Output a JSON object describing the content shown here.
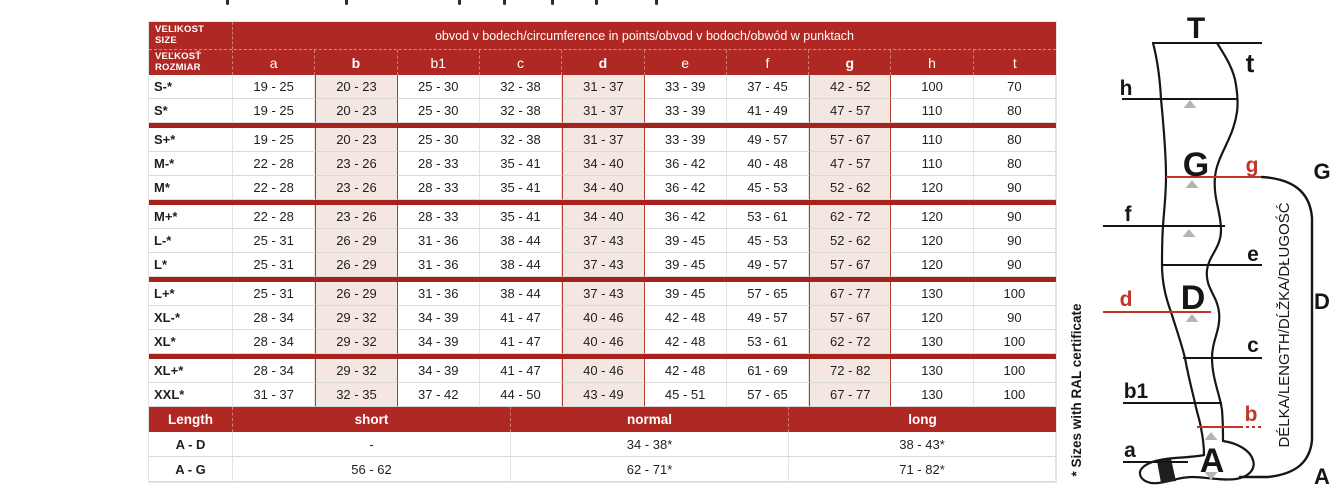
{
  "artifacts": {
    "top_cropped_marks_x": [
      226,
      345,
      458,
      503,
      551,
      595,
      655
    ]
  },
  "table": {
    "size_header_row1": {
      "line1": "VELIKOST",
      "line2": "SIZE"
    },
    "size_header_row2": {
      "line1": "VEĽKOSŤ",
      "line2": "ROZMIAR"
    },
    "circumference_title": "obvod v bodech/circumference in points/obvod v bodoch/obwód w punktach",
    "columns": [
      {
        "label": "a",
        "highlight": false
      },
      {
        "label": "b",
        "highlight": true
      },
      {
        "label": "b1",
        "highlight": false
      },
      {
        "label": "c",
        "highlight": false
      },
      {
        "label": "d",
        "highlight": true
      },
      {
        "label": "e",
        "highlight": false
      },
      {
        "label": "f",
        "highlight": false
      },
      {
        "label": "g",
        "highlight": true
      },
      {
        "label": "h",
        "highlight": false
      },
      {
        "label": "t",
        "highlight": false
      }
    ],
    "rows": [
      {
        "size": "S-*",
        "group_start": false,
        "values": [
          "19 - 25",
          "20 - 23",
          "25 - 30",
          "32 - 38",
          "31 - 37",
          "33 - 39",
          "37 - 45",
          "42 - 52",
          "100",
          "70"
        ]
      },
      {
        "size": "S*",
        "group_start": false,
        "values": [
          "19 - 25",
          "20 - 23",
          "25 - 30",
          "32 - 38",
          "31 - 37",
          "33 - 39",
          "41 - 49",
          "47 - 57",
          "110",
          "80"
        ]
      },
      {
        "size": "S+*",
        "group_start": true,
        "values": [
          "19 - 25",
          "20 - 23",
          "25 - 30",
          "32 - 38",
          "31 - 37",
          "33 - 39",
          "49 - 57",
          "57 - 67",
          "110",
          "80"
        ]
      },
      {
        "size": "M-*",
        "group_start": false,
        "values": [
          "22 - 28",
          "23 - 26",
          "28 - 33",
          "35 - 41",
          "34 - 40",
          "36 - 42",
          "40 - 48",
          "47 - 57",
          "110",
          "80"
        ]
      },
      {
        "size": "M*",
        "group_start": false,
        "values": [
          "22 - 28",
          "23 - 26",
          "28 - 33",
          "35 - 41",
          "34 - 40",
          "36 - 42",
          "45 - 53",
          "52 - 62",
          "120",
          "90"
        ]
      },
      {
        "size": "M+*",
        "group_start": true,
        "values": [
          "22 - 28",
          "23 - 26",
          "28 - 33",
          "35 - 41",
          "34 - 40",
          "36 - 42",
          "53 - 61",
          "62 - 72",
          "120",
          "90"
        ]
      },
      {
        "size": "L-*",
        "group_start": false,
        "values": [
          "25 - 31",
          "26 - 29",
          "31 - 36",
          "38 - 44",
          "37 - 43",
          "39 - 45",
          "45 - 53",
          "52 - 62",
          "120",
          "90"
        ]
      },
      {
        "size": "L*",
        "group_start": false,
        "values": [
          "25 - 31",
          "26 - 29",
          "31 - 36",
          "38 - 44",
          "37 - 43",
          "39 - 45",
          "49 - 57",
          "57 - 67",
          "120",
          "90"
        ]
      },
      {
        "size": "L+*",
        "group_start": true,
        "values": [
          "25 - 31",
          "26 - 29",
          "31 - 36",
          "38 - 44",
          "37 - 43",
          "39 - 45",
          "57 - 65",
          "67 - 77",
          "130",
          "100"
        ]
      },
      {
        "size": "XL-*",
        "group_start": false,
        "values": [
          "28 - 34",
          "29 - 32",
          "34 - 39",
          "41 - 47",
          "40 - 46",
          "42 - 48",
          "49 - 57",
          "57 - 67",
          "120",
          "90"
        ]
      },
      {
        "size": "XL*",
        "group_start": false,
        "values": [
          "28 - 34",
          "29 - 32",
          "34 - 39",
          "41 - 47",
          "40 - 46",
          "42 - 48",
          "53 - 61",
          "62 - 72",
          "130",
          "100"
        ]
      },
      {
        "size": "XL+*",
        "group_start": true,
        "values": [
          "28 - 34",
          "29 - 32",
          "34 - 39",
          "41 - 47",
          "40 - 46",
          "42 - 48",
          "61 - 69",
          "72 - 82",
          "130",
          "100"
        ]
      },
      {
        "size": "XXL*",
        "group_start": false,
        "values": [
          "31 - 37",
          "32 - 35",
          "37 - 42",
          "44 - 50",
          "43 - 49",
          "45 - 51",
          "57 - 65",
          "67 - 77",
          "130",
          "100"
        ]
      }
    ],
    "length_section": {
      "headers": [
        "Length",
        "short",
        "normal",
        "long"
      ],
      "rows": [
        {
          "label": "A - D",
          "values": [
            "-",
            "34 - 38*",
            "38 - 43*"
          ]
        },
        {
          "label": "A - G",
          "values": [
            "56 - 62",
            "62 - 71*",
            "71 - 82*"
          ]
        }
      ]
    }
  },
  "note": "* Sizes with RAL certificate",
  "diagram": {
    "labels": {
      "T": "T",
      "t": "t",
      "h": "h",
      "G_inner": "G",
      "g": "g",
      "G_bracket": "G",
      "f": "f",
      "e": "e",
      "d": "d",
      "D_inner": "D",
      "D_bracket": "D",
      "c": "c",
      "b1": "b1",
      "b": "b",
      "a": "a",
      "A_inner": "A",
      "A_bracket": "A"
    },
    "length_axis_label": "DÉLKA/LENGTH/DĹŽKA/DŁUGOŚĆ"
  },
  "colors": {
    "header_red": "#b02823",
    "separator_red": "#a6221c",
    "hl_bg": "#f4e7e1",
    "hl_border": "#b23a2e",
    "red_line": "#c13529",
    "ink": "#1f1f1f",
    "grid_line": "#d9d9d9"
  }
}
